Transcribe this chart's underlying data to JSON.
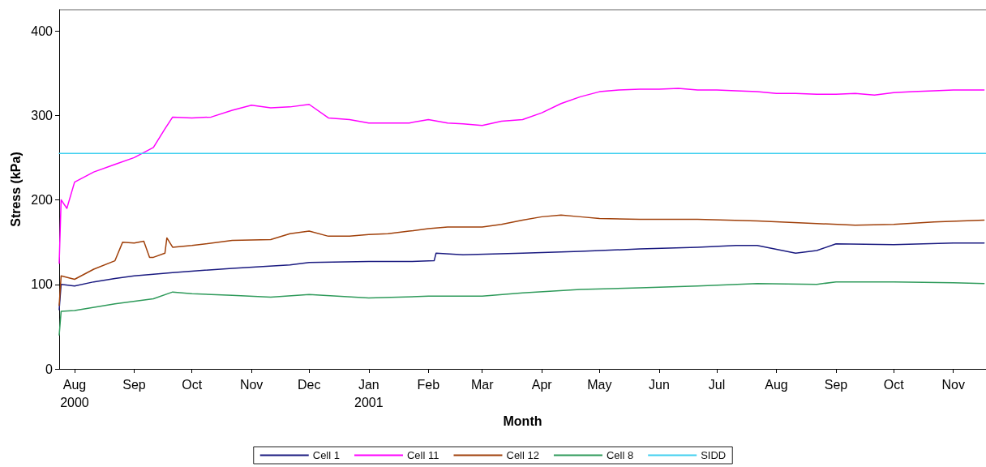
{
  "chart_data": {
    "type": "line",
    "xlabel": "Month",
    "ylabel": "Stress (kPa)",
    "xlim": [
      "2000-08-07",
      "2001-12-02"
    ],
    "xticks": [
      {
        "value": "2000-08-15",
        "label": "Aug\n2000"
      },
      {
        "value": "2000-09-15",
        "label": "Sep"
      },
      {
        "value": "2000-10-15",
        "label": "Oct"
      },
      {
        "value": "2000-11-15",
        "label": "Nov"
      },
      {
        "value": "2000-12-15",
        "label": "Dec"
      },
      {
        "value": "2001-01-15",
        "label": "Jan\n2001"
      },
      {
        "value": "2001-02-15",
        "label": "Feb"
      },
      {
        "value": "2001-03-15",
        "label": "Mar"
      },
      {
        "value": "2001-04-15",
        "label": "Apr"
      },
      {
        "value": "2001-05-15",
        "label": "May"
      },
      {
        "value": "2001-06-15",
        "label": "Jun"
      },
      {
        "value": "2001-07-15",
        "label": "Jul"
      },
      {
        "value": "2001-08-15",
        "label": "Aug"
      },
      {
        "value": "2001-09-15",
        "label": "Sep"
      },
      {
        "value": "2001-10-15",
        "label": "Oct"
      },
      {
        "value": "2001-11-15",
        "label": "Nov"
      }
    ],
    "ylim": [
      0,
      425
    ],
    "yticks": [
      0,
      100,
      200,
      300,
      400
    ],
    "grid": false,
    "legend": "bottom",
    "marker": "none",
    "line_style": "solid",
    "series": [
      {
        "name": "Cell 1",
        "color": "#1a1a80",
        "x": [
          "2000-08-07",
          "2000-08-08",
          "2000-08-15",
          "2000-08-25",
          "2000-09-05",
          "2000-09-15",
          "2000-10-05",
          "2000-11-05",
          "2000-12-05",
          "2000-12-15",
          "2001-01-15",
          "2001-02-05",
          "2001-02-18",
          "2001-02-19",
          "2001-03-05",
          "2001-04-05",
          "2001-05-05",
          "2001-06-05",
          "2001-07-05",
          "2001-07-25",
          "2001-08-05",
          "2001-08-25",
          "2001-09-05",
          "2001-09-15",
          "2001-10-15",
          "2001-11-15",
          "2001-12-01"
        ],
        "values": [
          70,
          100,
          98,
          103,
          107,
          110,
          114,
          119,
          123,
          126,
          127,
          127,
          128,
          137,
          135,
          137,
          139,
          142,
          144,
          146,
          146,
          137,
          140,
          148,
          147,
          149,
          149
        ]
      },
      {
        "name": "Cell 11",
        "color": "#ff00ff",
        "x": [
          "2000-08-07",
          "2000-08-08",
          "2000-08-11",
          "2000-08-15",
          "2000-08-25",
          "2000-09-05",
          "2000-09-15",
          "2000-09-25",
          "2000-10-01",
          "2000-10-05",
          "2000-10-15",
          "2000-10-25",
          "2000-11-05",
          "2000-11-15",
          "2000-11-25",
          "2000-12-05",
          "2000-12-15",
          "2000-12-25",
          "2001-01-05",
          "2001-01-15",
          "2001-01-25",
          "2001-02-05",
          "2001-02-15",
          "2001-02-25",
          "2001-03-05",
          "2001-03-15",
          "2001-03-25",
          "2001-04-05",
          "2001-04-15",
          "2001-04-25",
          "2001-05-05",
          "2001-05-15",
          "2001-05-25",
          "2001-06-05",
          "2001-06-15",
          "2001-06-25",
          "2001-07-05",
          "2001-07-15",
          "2001-07-25",
          "2001-08-05",
          "2001-08-15",
          "2001-08-25",
          "2001-09-05",
          "2001-09-15",
          "2001-09-25",
          "2001-10-05",
          "2001-10-15",
          "2001-10-25",
          "2001-11-05",
          "2001-11-15",
          "2001-12-01"
        ],
        "values": [
          125,
          200,
          190,
          221,
          233,
          242,
          250,
          262,
          284,
          298,
          297,
          298,
          306,
          312,
          309,
          310,
          313,
          297,
          295,
          291,
          291,
          291,
          295,
          291,
          290,
          288,
          293,
          295,
          303,
          314,
          322,
          328,
          330,
          331,
          331,
          332,
          330,
          330,
          329,
          328,
          326,
          326,
          325,
          325,
          326,
          324,
          327,
          328,
          329,
          330,
          330
        ]
      },
      {
        "name": "Cell 12",
        "color": "#a0400a",
        "x": [
          "2000-08-07",
          "2000-08-08",
          "2000-08-15",
          "2000-08-25",
          "2000-09-05",
          "2000-09-09",
          "2000-09-15",
          "2000-09-20",
          "2000-09-23",
          "2000-09-25",
          "2000-10-01",
          "2000-10-02",
          "2000-10-05",
          "2000-10-15",
          "2000-11-05",
          "2000-11-25",
          "2000-12-05",
          "2000-12-15",
          "2000-12-25",
          "2001-01-05",
          "2001-01-15",
          "2001-01-25",
          "2001-02-05",
          "2001-02-15",
          "2001-02-25",
          "2001-03-15",
          "2001-03-25",
          "2001-04-05",
          "2001-04-15",
          "2001-04-25",
          "2001-05-05",
          "2001-05-15",
          "2001-06-05",
          "2001-07-05",
          "2001-08-05",
          "2001-09-05",
          "2001-09-25",
          "2001-10-15",
          "2001-11-05",
          "2001-12-01"
        ],
        "values": [
          75,
          110,
          106,
          118,
          128,
          150,
          149,
          151,
          132,
          132,
          137,
          155,
          144,
          146,
          152,
          153,
          160,
          163,
          157,
          157,
          159,
          160,
          163,
          166,
          168,
          168,
          171,
          176,
          180,
          182,
          180,
          178,
          177,
          177,
          175,
          172,
          170,
          171,
          174,
          176
        ]
      },
      {
        "name": "Cell 8",
        "color": "#2e9a5a",
        "x": [
          "2000-08-07",
          "2000-08-08",
          "2000-08-15",
          "2000-09-05",
          "2000-09-25",
          "2000-10-05",
          "2000-10-15",
          "2000-11-05",
          "2000-11-25",
          "2000-12-15",
          "2001-01-15",
          "2001-02-15",
          "2001-03-15",
          "2001-04-05",
          "2001-05-05",
          "2001-06-05",
          "2001-07-05",
          "2001-08-05",
          "2001-09-05",
          "2001-09-15",
          "2001-10-15",
          "2001-11-15",
          "2001-12-01"
        ],
        "values": [
          40,
          68,
          69,
          77,
          83,
          91,
          89,
          87,
          85,
          88,
          84,
          86,
          86,
          90,
          94,
          96,
          98,
          101,
          100,
          103,
          103,
          102,
          101
        ]
      },
      {
        "name": "SIDD",
        "color": "#40d0f0",
        "x": [
          "2000-08-07",
          "2001-12-02"
        ],
        "values": [
          255,
          255
        ]
      }
    ]
  }
}
